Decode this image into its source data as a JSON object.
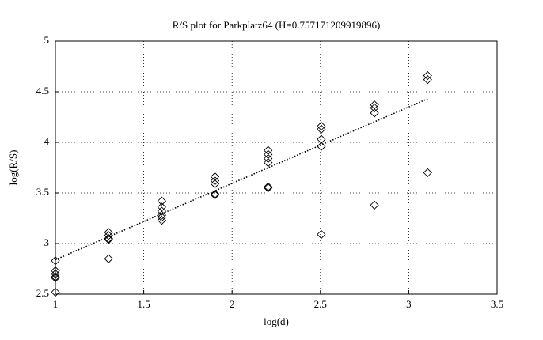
{
  "chart_data": {
    "type": "scatter",
    "title": "R/S plot for Parkplatz64 (H=0.757171209919896)",
    "xlabel": "log(d)",
    "ylabel": "log(R/S)",
    "x": [
      1,
      1,
      1,
      1,
      1,
      1,
      1.301,
      1.301,
      1.301,
      1.301,
      1.301,
      1.602,
      1.602,
      1.602,
      1.602,
      1.602,
      1.602,
      1.903,
      1.903,
      1.903,
      1.903,
      1.903,
      2.204,
      2.204,
      2.204,
      2.204,
      2.204,
      2.204,
      2.505,
      2.505,
      2.505,
      2.505,
      2.505,
      2.806,
      2.806,
      2.806,
      2.806,
      3.107,
      3.107,
      3.107
    ],
    "y": [
      2.83,
      2.73,
      2.7,
      2.67,
      2.66,
      2.52,
      3.11,
      3.08,
      3.05,
      3.04,
      2.85,
      3.42,
      3.36,
      3.32,
      3.28,
      3.26,
      3.23,
      3.66,
      3.62,
      3.59,
      3.49,
      3.48,
      3.92,
      3.88,
      3.84,
      3.8,
      3.56,
      3.55,
      4.16,
      4.13,
      4.03,
      3.96,
      3.09,
      4.37,
      4.34,
      4.29,
      3.38,
      4.66,
      4.62,
      3.7
    ],
    "fit": {
      "x": [
        1,
        3.107
      ],
      "y": [
        2.84,
        4.43
      ]
    },
    "xlim": [
      1,
      3.5
    ],
    "ylim": [
      2.5,
      5
    ],
    "xticks": [
      1,
      1.5,
      2,
      2.5,
      3,
      3.5
    ],
    "yticks": [
      2.5,
      3,
      3.5,
      4,
      4.5,
      5
    ],
    "grid": true,
    "marker_color": "#000000"
  }
}
